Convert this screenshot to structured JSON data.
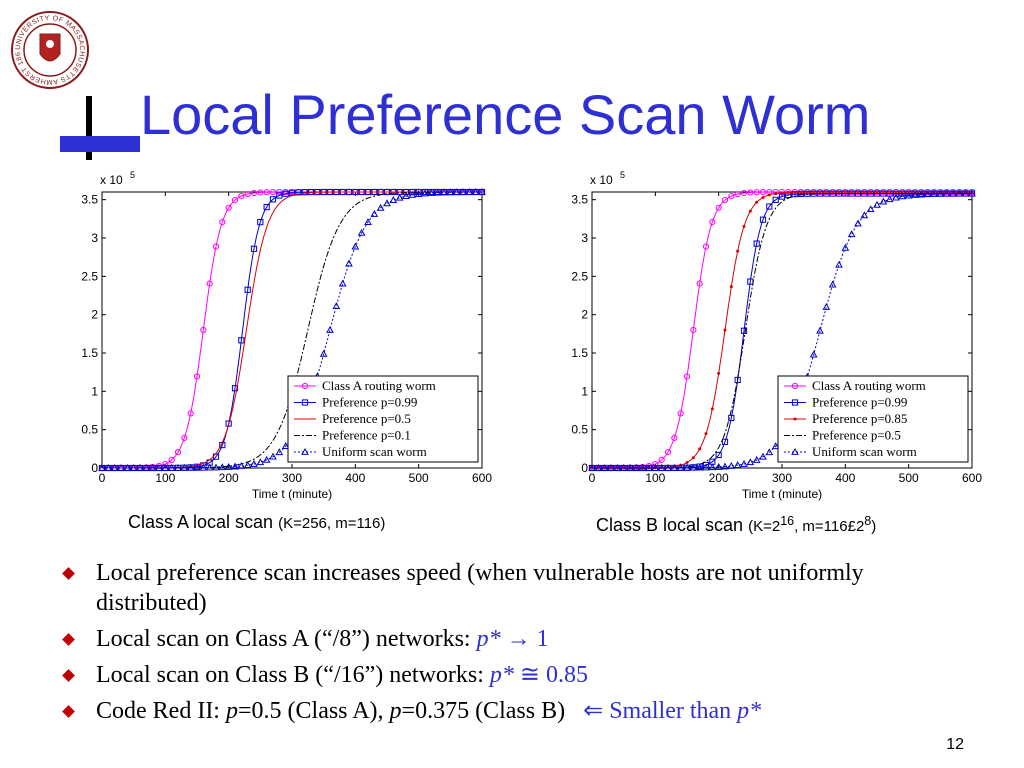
{
  "slide": {
    "title": "Local Preference Scan Worm",
    "page_number": "12",
    "colors": {
      "title": "#2f2fd6",
      "bullet": "#c00000",
      "accent_text": "#2f2fd6"
    }
  },
  "logo": {
    "text": "UNIVERSITY OF MASSACHUSETTS AMHERST 1863",
    "icon": "university-seal-icon"
  },
  "captions": {
    "a": {
      "main": "Class A local scan",
      "params": "(K=256, m=116)"
    },
    "b": {
      "main": "Class B local scan",
      "params_prefix": "(K=2",
      "k_exp": "16",
      "params_mid": ", m=116£2",
      "m_exp": "8",
      "params_suffix": ")"
    }
  },
  "bullets": [
    {
      "text": "Local preference scan increases speed (when vulnerable hosts are not uniformly distributed)"
    },
    {
      "text": "Local scan on Class A (“/8”) networks: ",
      "accent_var": "p*",
      "accent_rel": "→",
      "accent_val": "1"
    },
    {
      "text": "Local scan on Class B (“/16”) networks: ",
      "accent_var": "p*",
      "accent_rel": "≅",
      "accent_val": "0.85"
    },
    {
      "text_a": "Code Red II: ",
      "var1": "p",
      "val1": "=0.5 (Class A), ",
      "var2": "p",
      "val2": "=0.375 (Class B)",
      "accent_pre": "⇐ Smaller than ",
      "accent_var": "p*"
    }
  ],
  "chart_data": [
    {
      "type": "line",
      "xlabel": "Time t (minute)",
      "exponent_label_base": "x 10",
      "exponent_label_exp": "5",
      "xlim": [
        0,
        600
      ],
      "ylim": [
        0,
        3.6
      ],
      "x_ticks": [
        "0",
        "100",
        "200",
        "300",
        "400",
        "500",
        "600"
      ],
      "y_ticks": [
        "0",
        "0.5",
        "1",
        "1.5",
        "2",
        "2.5",
        "3",
        "3.5"
      ],
      "legend_position": "bottom-right",
      "series": [
        {
          "name": "Class A routing worm",
          "color": "#ff00ff",
          "marker": "circle",
          "dash": "",
          "midpoint": 160,
          "steepness": 0.07,
          "max": 3.6
        },
        {
          "name": "Preference p=0.99",
          "color": "#0000cc",
          "marker": "square",
          "dash": "",
          "midpoint": 222,
          "steepness": 0.075,
          "max": 3.6
        },
        {
          "name": "Preference p=0.5",
          "color": "#dd0000",
          "marker": "none",
          "dash": "",
          "midpoint": 228,
          "steepness": 0.06,
          "max": 3.6
        },
        {
          "name": "Preference p=0.1",
          "color": "#000000",
          "marker": "none",
          "dash": "6,2,2,2",
          "midpoint": 325,
          "steepness": 0.04,
          "max": 3.6
        },
        {
          "name": "Uniform scan worm",
          "color": "#0000cc",
          "marker": "triangle",
          "dash": "2,2",
          "midpoint": 360,
          "steepness": 0.035,
          "max": 3.6
        }
      ]
    },
    {
      "type": "line",
      "xlabel": "Time t (minute)",
      "exponent_label_base": "x 10",
      "exponent_label_exp": "5",
      "xlim": [
        0,
        600
      ],
      "ylim": [
        0,
        3.6
      ],
      "x_ticks": [
        "0",
        "100",
        "200",
        "300",
        "400",
        "500",
        "600"
      ],
      "y_ticks": [
        "0",
        "0.5",
        "1",
        "1.5",
        "2",
        "2.5",
        "3",
        "3.5"
      ],
      "legend_position": "bottom-right",
      "series": [
        {
          "name": "Class A routing worm",
          "color": "#ff00ff",
          "marker": "circle",
          "dash": "",
          "midpoint": 160,
          "steepness": 0.07,
          "max": 3.6
        },
        {
          "name": "Preference p=0.99",
          "color": "#0000cc",
          "marker": "square",
          "dash": "",
          "midpoint": 240,
          "steepness": 0.075,
          "max": 3.58
        },
        {
          "name": "Preference p=0.85",
          "color": "#dd0000",
          "marker": "dot",
          "dash": "",
          "midpoint": 210,
          "steepness": 0.065,
          "max": 3.6
        },
        {
          "name": "Preference p=0.5",
          "color": "#000000",
          "marker": "none",
          "dash": "6,2,2,2",
          "midpoint": 242,
          "steepness": 0.06,
          "max": 3.58
        },
        {
          "name": "Uniform scan worm",
          "color": "#0000cc",
          "marker": "triangle",
          "dash": "2,2",
          "midpoint": 360,
          "steepness": 0.035,
          "max": 3.58
        }
      ]
    }
  ]
}
